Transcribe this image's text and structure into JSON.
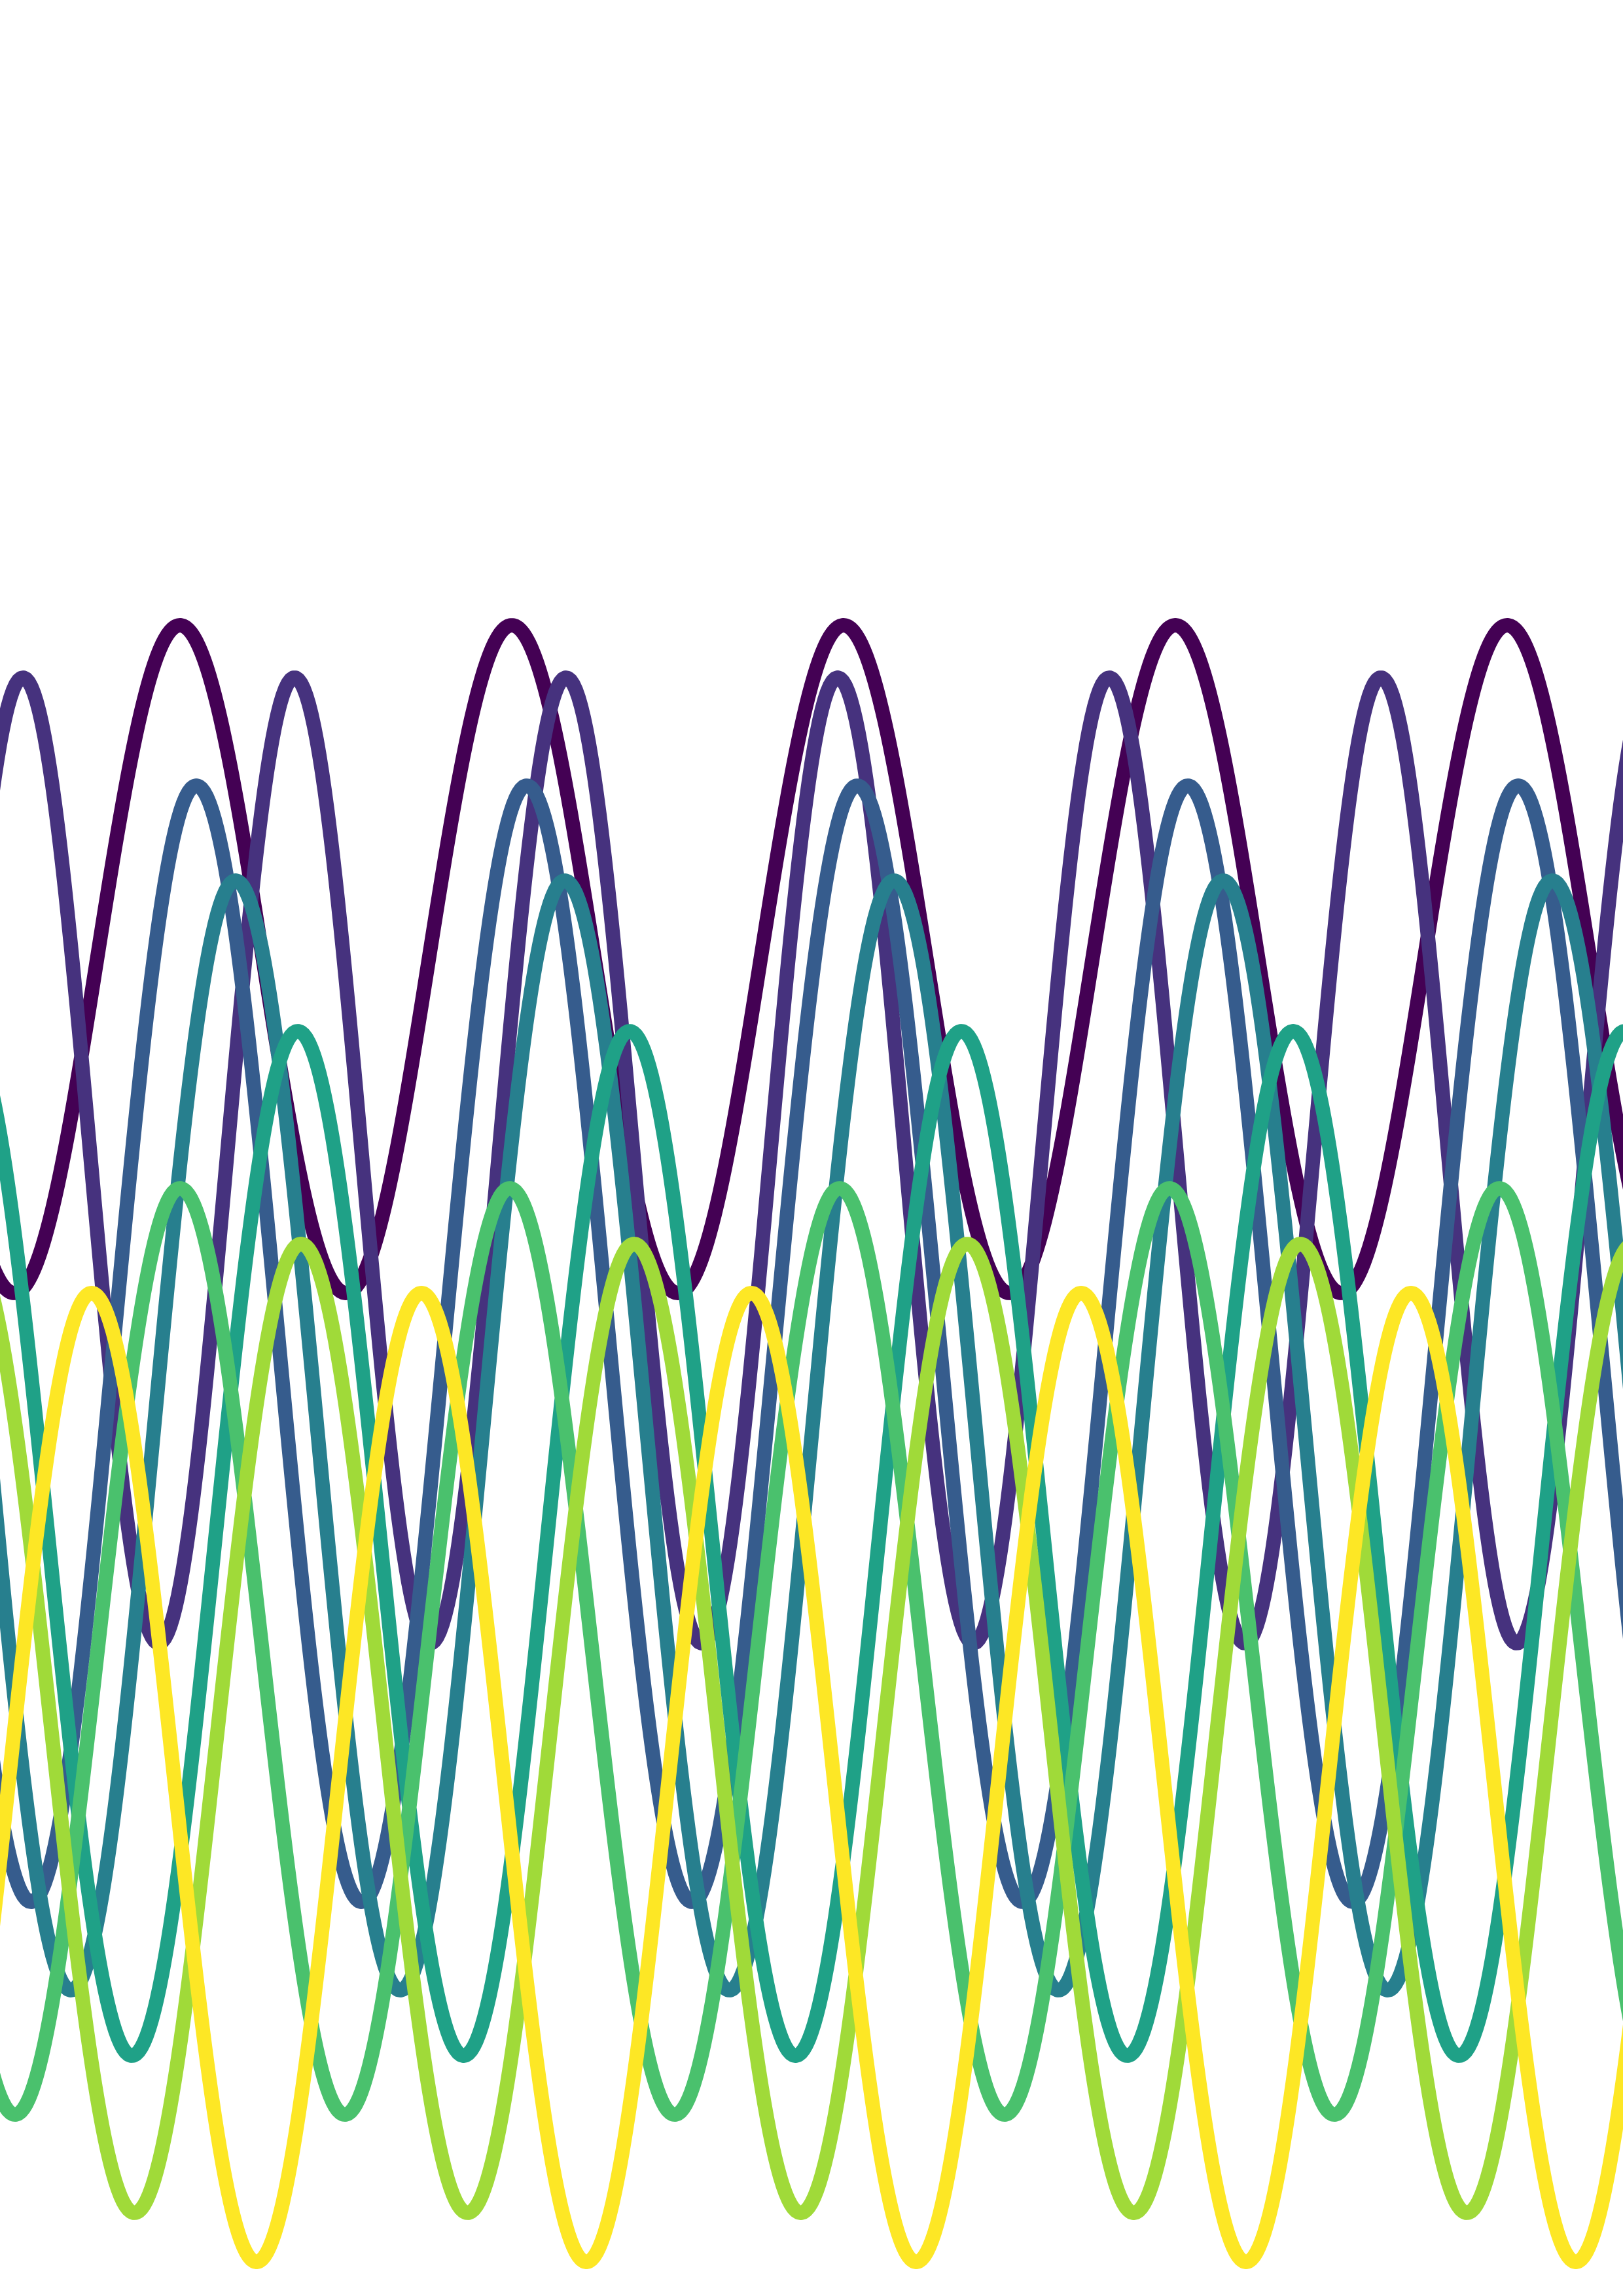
{
  "artwork": {
    "background": "#ffffff",
    "waves": [
      {
        "color": "#440154"
      },
      {
        "color": "#46327e"
      },
      {
        "color": "#365c8d"
      },
      {
        "color": "#277f8e"
      },
      {
        "color": "#1fa187"
      },
      {
        "color": "#4ac16d"
      },
      {
        "color": "#a0da39"
      },
      {
        "color": "#fde725"
      }
    ]
  }
}
